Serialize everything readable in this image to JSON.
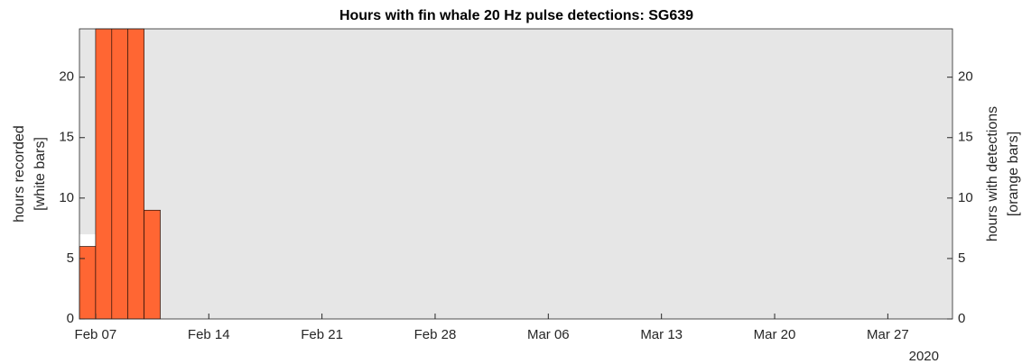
{
  "chart_data": {
    "type": "bar",
    "title": "Hours with fin whale 20 Hz pulse detections: SG639",
    "ylabel": [
      "hours recorded",
      "[white bars]"
    ],
    "y2label": [
      "hours with detections",
      "[orange bars]"
    ],
    "x_secondary_label": "2020",
    "x": [
      "2020-02-06",
      "2020-02-07",
      "2020-02-08",
      "2020-02-09",
      "2020-02-10"
    ],
    "series": [
      {
        "color": "#ffffff",
        "values": [
          7,
          24,
          24,
          24,
          9
        ]
      },
      {
        "color": "#ff6633",
        "values": [
          6,
          24,
          24,
          24,
          9
        ],
        "axis": "y2"
      }
    ],
    "xlim": [
      "2020-02-06",
      "2020-03-31"
    ],
    "xticks": [
      {
        "value": "2020-02-07",
        "label": "Feb 07"
      },
      {
        "value": "2020-02-14",
        "label": "Feb 14"
      },
      {
        "value": "2020-02-21",
        "label": "Feb 21"
      },
      {
        "value": "2020-02-28",
        "label": "Feb 28"
      },
      {
        "value": "2020-03-06",
        "label": "Mar 06"
      },
      {
        "value": "2020-03-13",
        "label": "Mar 13"
      },
      {
        "value": "2020-03-20",
        "label": "Mar 20"
      },
      {
        "value": "2020-03-27",
        "label": "Mar 27"
      }
    ],
    "ylim": [
      0,
      24
    ],
    "yticks": [
      0,
      5,
      10,
      15,
      20
    ],
    "y2lim": [
      0,
      24
    ],
    "y2ticks": [
      0,
      5,
      10,
      15,
      20
    ],
    "background": "#e6e6e6"
  }
}
